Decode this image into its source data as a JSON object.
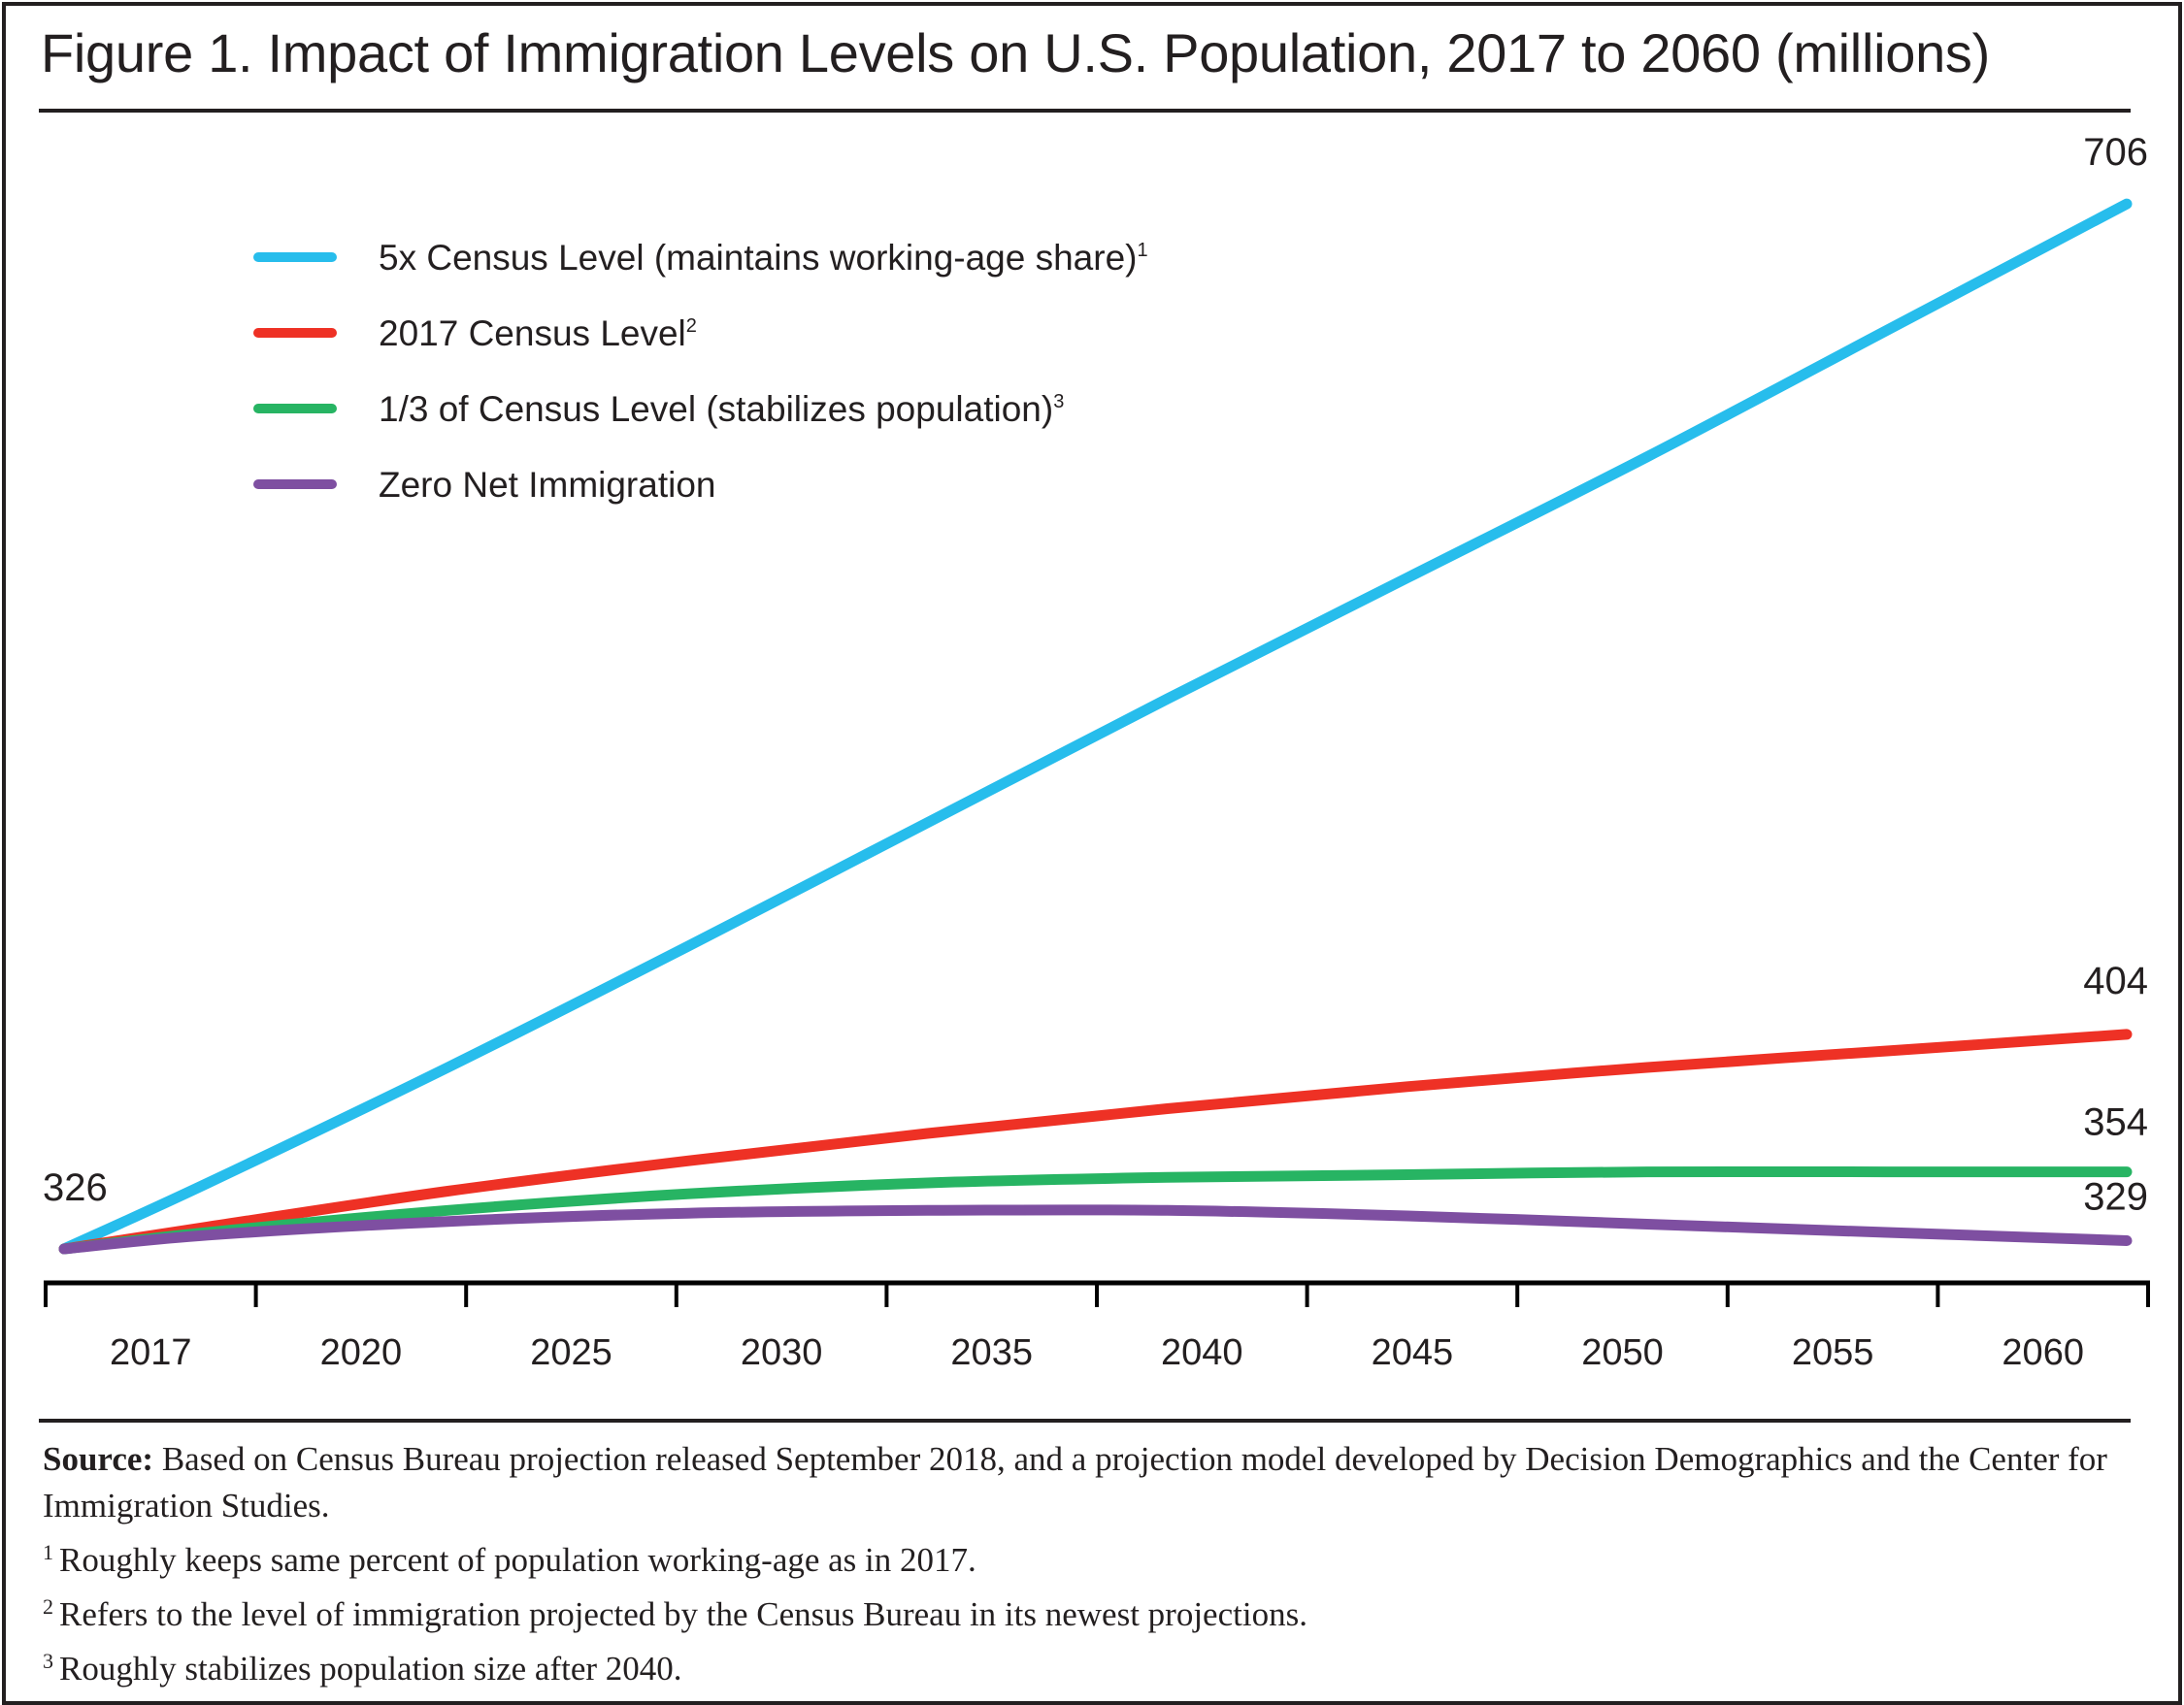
{
  "chart_data": {
    "type": "line",
    "title": "Figure 1. Impact of Immigration Levels on U.S. Population, 2017 to 2060 (millions)",
    "xlabel": "",
    "ylabel": "",
    "x_tick_labels": [
      "2017",
      "2020",
      "2025",
      "2030",
      "2035",
      "2040",
      "2045",
      "2050",
      "2055",
      "2060"
    ],
    "xlim": [
      2017,
      2060
    ],
    "ylim": [
      310,
      720
    ],
    "grid": false,
    "legend_position": "top-left",
    "start_label": "326",
    "series": [
      {
        "name": "5x Census Level (maintains working-age share)",
        "footnote_mark": "1",
        "color": "#27bdec",
        "x": [
          2017,
          2020,
          2025,
          2030,
          2035,
          2040,
          2045,
          2050,
          2055,
          2060
        ],
        "values": [
          326,
          350,
          392,
          436,
          481,
          526,
          570,
          614,
          660,
          706
        ],
        "end_label": "706"
      },
      {
        "name": "2017 Census Level",
        "footnote_mark": "2",
        "color": "#ee3125",
        "x": [
          2017,
          2020,
          2025,
          2030,
          2035,
          2040,
          2045,
          2050,
          2055,
          2060
        ],
        "values": [
          326,
          334,
          347,
          358,
          368,
          377,
          385,
          392,
          398,
          404
        ],
        "end_label": "404"
      },
      {
        "name": "1/3 of Census Level (stabilizes population)",
        "footnote_mark": "3",
        "color": "#27b463",
        "x": [
          2017,
          2020,
          2025,
          2030,
          2035,
          2040,
          2045,
          2050,
          2055,
          2060
        ],
        "values": [
          326,
          332,
          340,
          346,
          350,
          352,
          353,
          354,
          354,
          354
        ],
        "end_label": "354"
      },
      {
        "name": "Zero Net Immigration",
        "footnote_mark": "",
        "color": "#7e4fa1",
        "x": [
          2017,
          2020,
          2025,
          2030,
          2035,
          2040,
          2045,
          2050,
          2055,
          2060
        ],
        "values": [
          326,
          331,
          336,
          339,
          340,
          340,
          338,
          335,
          332,
          329
        ],
        "end_label": "329"
      }
    ]
  },
  "source": {
    "label": "Source:",
    "text": "Based on Census Bureau projection released September 2018, and a projection model developed by Decision Demographics and the Center for Immigration Studies."
  },
  "footnotes": [
    {
      "mark": "1",
      "text": "Roughly keeps same percent of population working-age as in 2017."
    },
    {
      "mark": "2",
      "text": "Refers to the level of immigration projected by the Census Bureau in its newest projections."
    },
    {
      "mark": "3",
      "text": "Roughly stabilizes population size after 2040."
    }
  ]
}
